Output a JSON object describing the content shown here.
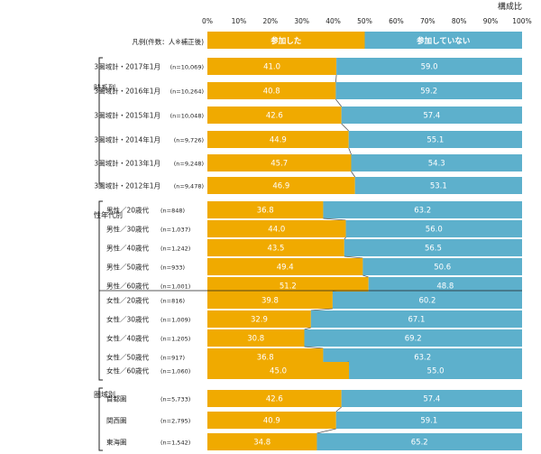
{
  "chart_data": {
    "type": "bar",
    "stacked": true,
    "orientation": "horizontal",
    "corner_label": "構成比",
    "xlim": [
      0,
      100
    ],
    "x_ticks": [
      "0%",
      "10%",
      "20%",
      "30%",
      "40%",
      "50%",
      "60%",
      "70%",
      "80%",
      "90%",
      "100%"
    ],
    "grid": false,
    "legend_label": "凡例(件数：人※補正後)",
    "series": [
      {
        "name": "参加した",
        "color": "#F0AA00"
      },
      {
        "name": "参加していない",
        "color": "#5DB0CC"
      }
    ],
    "groups": [
      {
        "label": "時系列",
        "rows": [
          {
            "label": "3圏域計・2017年1月",
            "n": "(n=10,069)",
            "values": [
              41.0,
              59.0
            ],
            "texts": [
              "41.0",
              "59.0"
            ]
          },
          {
            "label": "3圏域計・2016年1月",
            "n": "(n=10,264)",
            "values": [
              40.8,
              59.2
            ],
            "texts": [
              "40.8",
              "59.2"
            ]
          },
          {
            "label": "3圏域計・2015年1月",
            "n": "(n=10,048)",
            "values": [
              42.6,
              57.4
            ],
            "texts": [
              "42.6",
              "57.4"
            ]
          },
          {
            "label": "3圏域計・2014年1月",
            "n": "(n=9,726)",
            "values": [
              44.9,
              55.1
            ],
            "texts": [
              "44.9",
              "55.1"
            ]
          },
          {
            "label": "3圏域計・2013年1月",
            "n": "(n=9,248)",
            "values": [
              45.7,
              54.3
            ],
            "texts": [
              "45.7",
              "54.3"
            ]
          },
          {
            "label": "3圏域計・2012年1月",
            "n": "(n=9,478)",
            "values": [
              46.9,
              53.1
            ],
            "texts": [
              "46.9",
              "53.1"
            ]
          }
        ]
      },
      {
        "label": "性年代別",
        "rows": [
          {
            "label": "男性／20歳代",
            "n": "(n=848)",
            "values": [
              36.8,
              63.2
            ],
            "texts": [
              "36.8",
              "63.2"
            ]
          },
          {
            "label": "男性／30歳代",
            "n": "(n=1,037)",
            "values": [
              44.0,
              56.0
            ],
            "texts": [
              "44.0",
              "56.0"
            ]
          },
          {
            "label": "男性／40歳代",
            "n": "(n=1,242)",
            "values": [
              43.5,
              56.5
            ],
            "texts": [
              "43.5",
              "56.5"
            ]
          },
          {
            "label": "男性／50歳代",
            "n": "(n=933)",
            "values": [
              49.4,
              50.6
            ],
            "texts": [
              "49.4",
              "50.6"
            ]
          },
          {
            "label": "男性／60歳代",
            "n": "(n=1,001)",
            "values": [
              51.2,
              48.8
            ],
            "texts": [
              "51.2",
              "48.8"
            ]
          },
          {
            "label": "女性／20歳代",
            "n": "(n=816)",
            "values": [
              39.8,
              60.2
            ],
            "texts": [
              "39.8",
              "60.2"
            ]
          },
          {
            "label": "女性／30歳代",
            "n": "(n=1,009)",
            "values": [
              32.9,
              67.1
            ],
            "texts": [
              "32.9",
              "67.1"
            ]
          },
          {
            "label": "女性／40歳代",
            "n": "(n=1,205)",
            "values": [
              30.8,
              69.2
            ],
            "texts": [
              "30.8",
              "69.2"
            ]
          },
          {
            "label": "女性／50歳代",
            "n": "(n=917)",
            "values": [
              36.8,
              63.2
            ],
            "texts": [
              "36.8",
              "63.2"
            ]
          },
          {
            "label": "女性／60歳代",
            "n": "(n=1,060)",
            "values": [
              45.0,
              55.0
            ],
            "texts": [
              "45.0",
              "55.0"
            ]
          }
        ]
      },
      {
        "label": "圏域別",
        "rows": [
          {
            "label": "首都圏",
            "n": "(n=5,733)",
            "values": [
              42.6,
              57.4
            ],
            "texts": [
              "42.6",
              "57.4"
            ]
          },
          {
            "label": "関西圏",
            "n": "(n=2,795)",
            "values": [
              40.9,
              59.1
            ],
            "texts": [
              "40.9",
              "59.1"
            ]
          },
          {
            "label": "東海圏",
            "n": "(n=1,542)",
            "values": [
              34.8,
              65.2
            ],
            "texts": [
              "34.8",
              "65.2"
            ]
          }
        ]
      }
    ]
  }
}
